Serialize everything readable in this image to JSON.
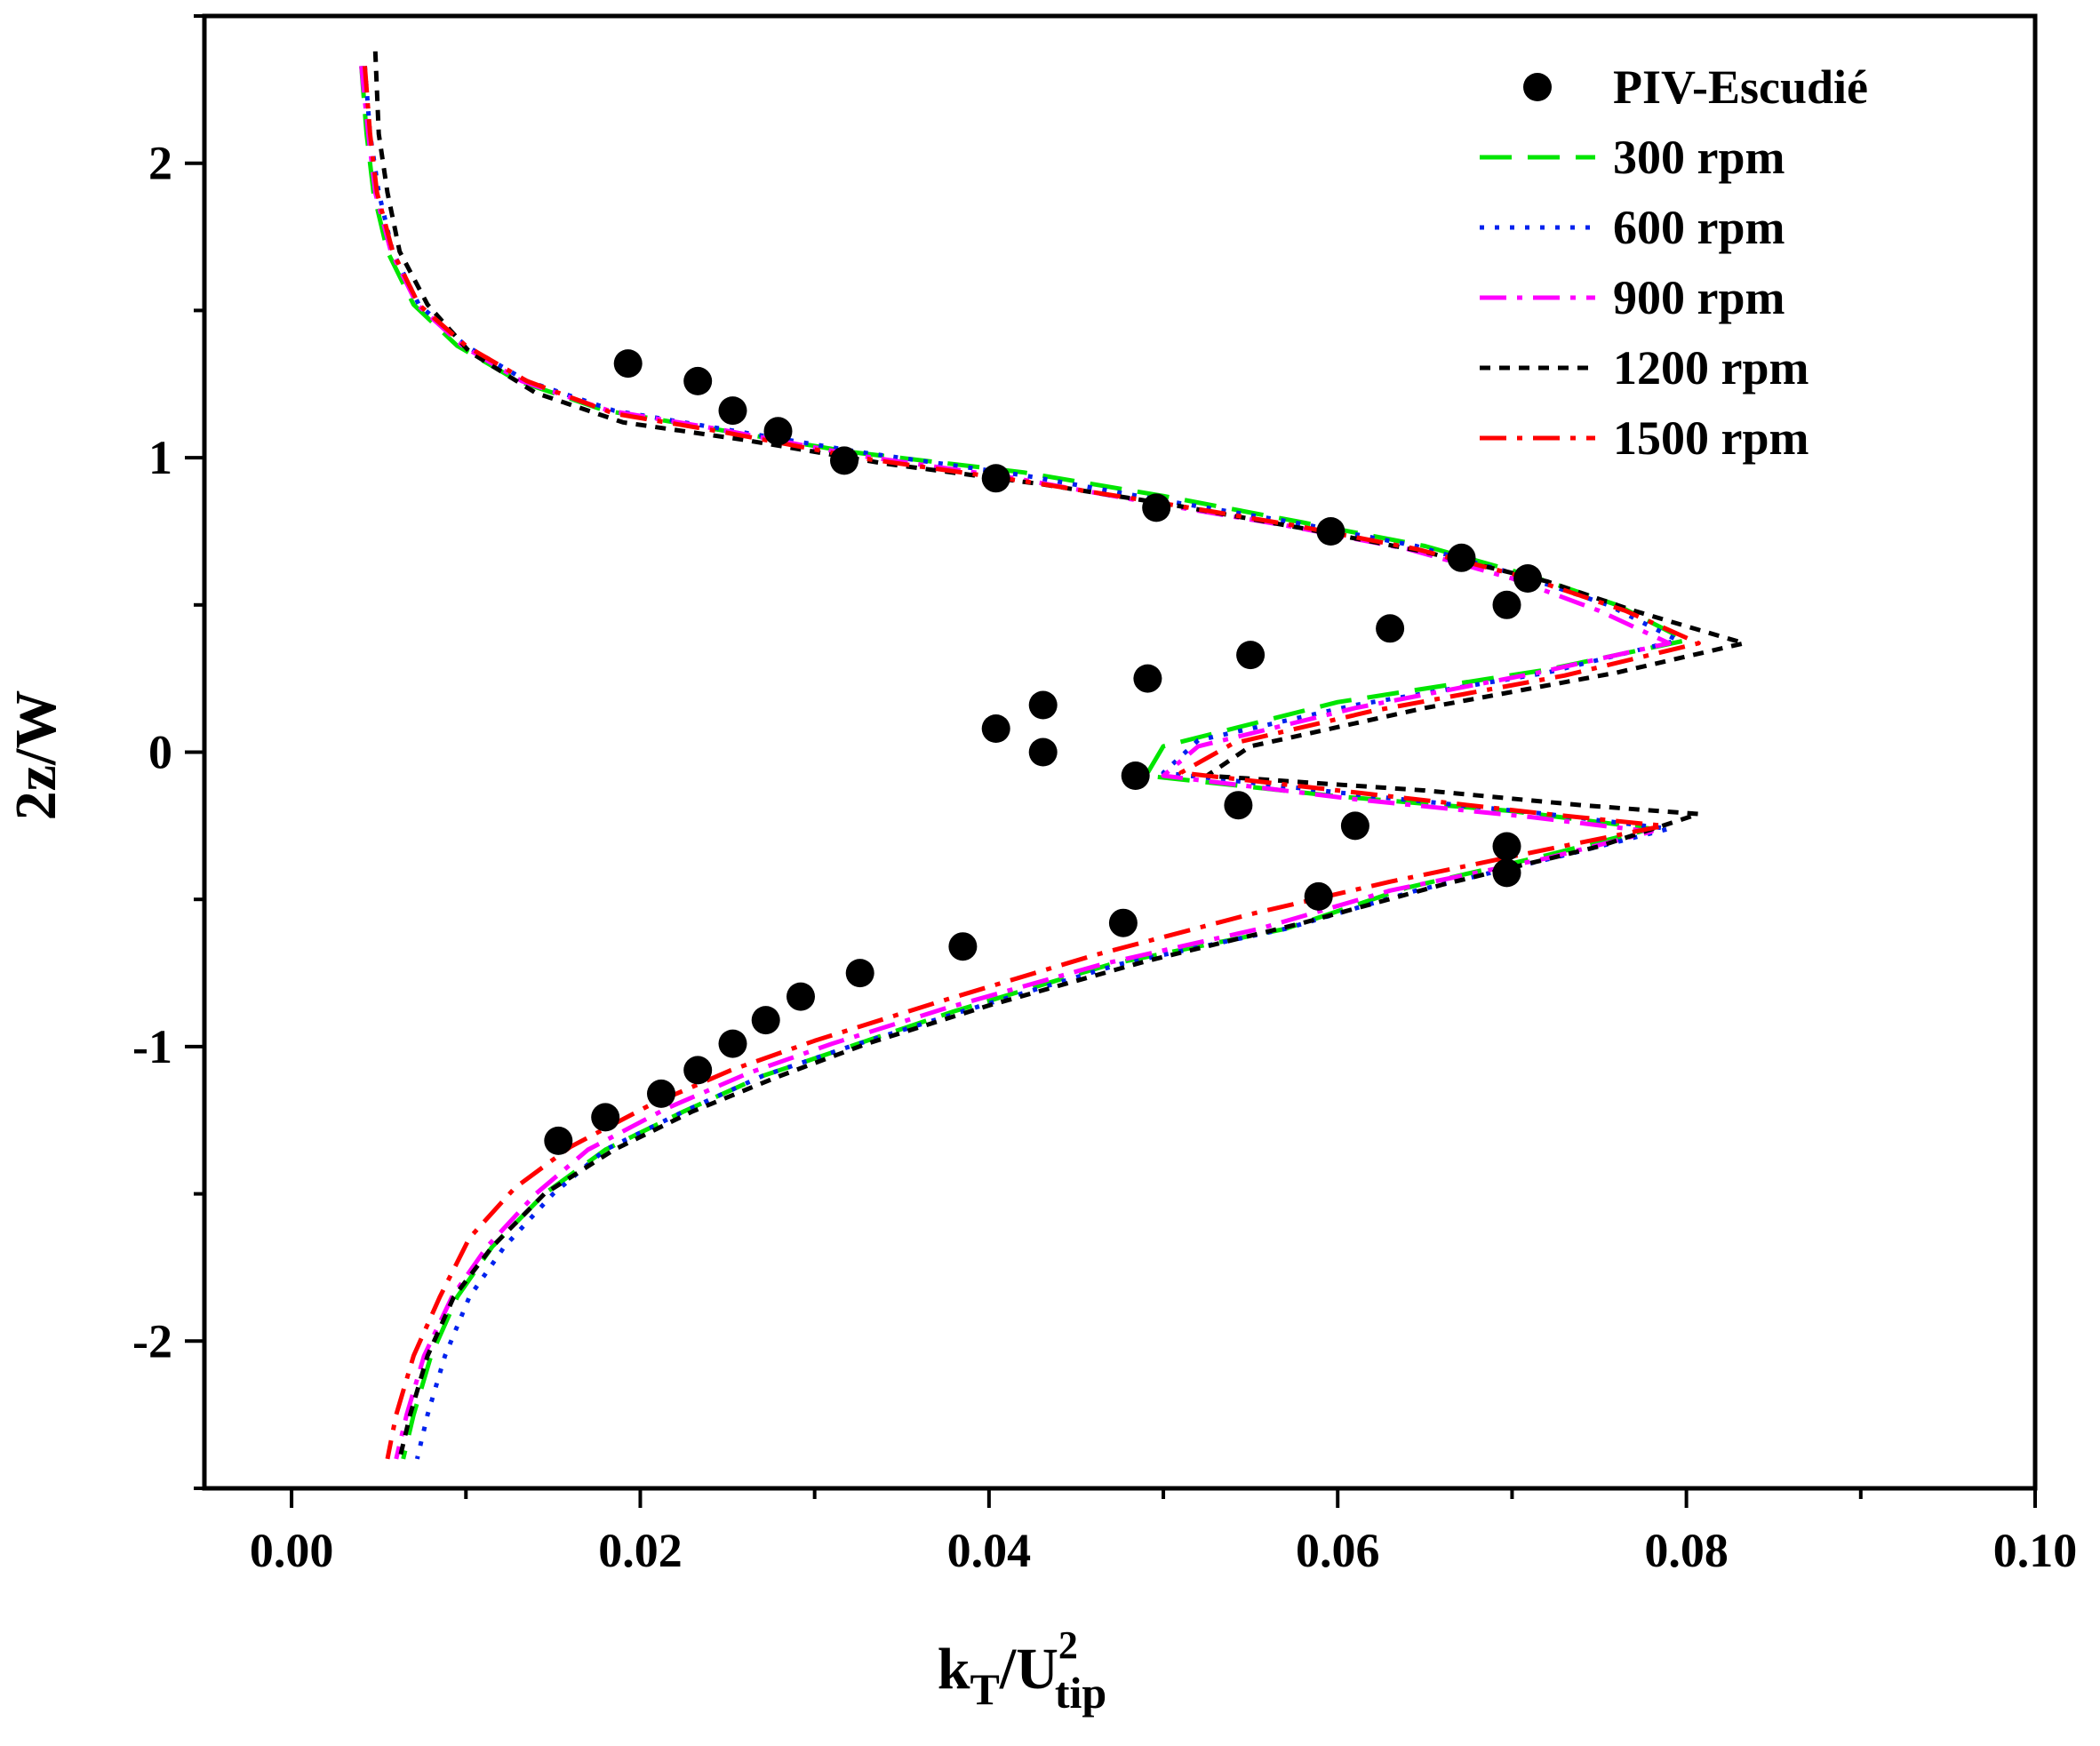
{
  "chart_data": {
    "type": "line",
    "title": "",
    "xlabel": "k_T/U_tip^2",
    "xlabel_parts": {
      "main": "k",
      "sub1": "T",
      "mid": "/U",
      "sup": "2",
      "sub2": "tip"
    },
    "ylabel": "2z/W",
    "xlim": [
      -0.005,
      0.1
    ],
    "ylim": [
      -2.5,
      2.5
    ],
    "x_ticks": [
      0.0,
      0.02,
      0.04,
      0.06,
      0.08,
      0.1
    ],
    "x_tick_labels": [
      "0.00",
      "0.02",
      "0.04",
      "0.06",
      "0.08",
      "0.10"
    ],
    "y_ticks": [
      -2,
      -1,
      0,
      1,
      2
    ],
    "y_tick_labels": [
      "-2",
      "-1",
      "0",
      "1",
      "2"
    ],
    "grid": false,
    "legend_position": "top-right",
    "experimental": {
      "name": "PIV-Escudié",
      "color": "#000000",
      "points": [
        [
          0.0193,
          1.32
        ],
        [
          0.0233,
          1.26
        ],
        [
          0.0253,
          1.16
        ],
        [
          0.0279,
          1.09
        ],
        [
          0.0317,
          0.99
        ],
        [
          0.0404,
          0.93
        ],
        [
          0.0496,
          0.83
        ],
        [
          0.0596,
          0.75
        ],
        [
          0.0671,
          0.66
        ],
        [
          0.0709,
          0.59
        ],
        [
          0.0697,
          0.5
        ],
        [
          0.063,
          0.42
        ],
        [
          0.055,
          0.33
        ],
        [
          0.0491,
          0.25
        ],
        [
          0.0431,
          0.16
        ],
        [
          0.0404,
          0.08
        ],
        [
          0.0431,
          0.0
        ],
        [
          0.0484,
          -0.08
        ],
        [
          0.0543,
          -0.18
        ],
        [
          0.061,
          -0.25
        ],
        [
          0.0697,
          -0.32
        ],
        [
          0.0697,
          -0.41
        ],
        [
          0.0589,
          -0.49
        ],
        [
          0.0477,
          -0.58
        ],
        [
          0.0385,
          -0.66
        ],
        [
          0.0326,
          -0.75
        ],
        [
          0.0292,
          -0.83
        ],
        [
          0.0272,
          -0.91
        ],
        [
          0.0253,
          -0.99
        ],
        [
          0.0233,
          -1.08
        ],
        [
          0.0212,
          -1.16
        ],
        [
          0.018,
          -1.24
        ],
        [
          0.0153,
          -1.32
        ]
      ]
    },
    "series": [
      {
        "name": "300 rpm",
        "color": "#00e600",
        "dash": "long-dash",
        "points": [
          [
            0.004,
            2.33
          ],
          [
            0.0043,
            2.1
          ],
          [
            0.0047,
            1.9
          ],
          [
            0.0055,
            1.7
          ],
          [
            0.007,
            1.52
          ],
          [
            0.0095,
            1.38
          ],
          [
            0.013,
            1.26
          ],
          [
            0.018,
            1.16
          ],
          [
            0.024,
            1.1
          ],
          [
            0.032,
            1.02
          ],
          [
            0.042,
            0.95
          ],
          [
            0.05,
            0.87
          ],
          [
            0.058,
            0.78
          ],
          [
            0.065,
            0.7
          ],
          [
            0.071,
            0.6
          ],
          [
            0.076,
            0.5
          ],
          [
            0.08,
            0.38
          ],
          [
            0.072,
            0.28
          ],
          [
            0.06,
            0.17
          ],
          [
            0.05,
            0.02
          ],
          [
            0.049,
            -0.08
          ],
          [
            0.06,
            -0.15
          ],
          [
            0.07,
            -0.2
          ],
          [
            0.078,
            -0.26
          ],
          [
            0.072,
            -0.35
          ],
          [
            0.064,
            -0.46
          ],
          [
            0.057,
            -0.6
          ],
          [
            0.047,
            -0.72
          ],
          [
            0.038,
            -0.88
          ],
          [
            0.032,
            -1.0
          ],
          [
            0.027,
            -1.1
          ],
          [
            0.0225,
            -1.22
          ],
          [
            0.018,
            -1.35
          ],
          [
            0.0145,
            -1.5
          ],
          [
            0.0115,
            -1.68
          ],
          [
            0.0095,
            -1.85
          ],
          [
            0.008,
            -2.05
          ],
          [
            0.007,
            -2.25
          ],
          [
            0.0064,
            -2.4
          ]
        ]
      },
      {
        "name": "600 rpm",
        "color": "#0022ee",
        "dash": "dot",
        "points": [
          [
            0.0042,
            2.33
          ],
          [
            0.0045,
            2.1
          ],
          [
            0.005,
            1.9
          ],
          [
            0.0058,
            1.7
          ],
          [
            0.0073,
            1.52
          ],
          [
            0.01,
            1.38
          ],
          [
            0.0135,
            1.26
          ],
          [
            0.0185,
            1.16
          ],
          [
            0.0245,
            1.1
          ],
          [
            0.0325,
            1.02
          ],
          [
            0.042,
            0.94
          ],
          [
            0.0495,
            0.86
          ],
          [
            0.0575,
            0.78
          ],
          [
            0.0645,
            0.7
          ],
          [
            0.0705,
            0.6
          ],
          [
            0.0755,
            0.5
          ],
          [
            0.0795,
            0.38
          ],
          [
            0.072,
            0.27
          ],
          [
            0.061,
            0.16
          ],
          [
            0.052,
            0.04
          ],
          [
            0.05,
            -0.07
          ],
          [
            0.062,
            -0.15
          ],
          [
            0.072,
            -0.21
          ],
          [
            0.079,
            -0.26
          ],
          [
            0.073,
            -0.35
          ],
          [
            0.0645,
            -0.47
          ],
          [
            0.057,
            -0.6
          ],
          [
            0.0475,
            -0.72
          ],
          [
            0.0385,
            -0.88
          ],
          [
            0.032,
            -1.0
          ],
          [
            0.027,
            -1.1
          ],
          [
            0.0225,
            -1.22
          ],
          [
            0.018,
            -1.35
          ],
          [
            0.015,
            -1.5
          ],
          [
            0.0122,
            -1.68
          ],
          [
            0.0102,
            -1.85
          ],
          [
            0.0088,
            -2.05
          ],
          [
            0.0078,
            -2.25
          ],
          [
            0.0072,
            -2.4
          ]
        ]
      },
      {
        "name": "900 rpm",
        "color": "#ff00ff",
        "dash": "dash-dot",
        "points": [
          [
            0.004,
            2.33
          ],
          [
            0.0044,
            2.1
          ],
          [
            0.0048,
            1.9
          ],
          [
            0.0057,
            1.7
          ],
          [
            0.0072,
            1.52
          ],
          [
            0.0098,
            1.38
          ],
          [
            0.0132,
            1.26
          ],
          [
            0.0182,
            1.16
          ],
          [
            0.0242,
            1.1
          ],
          [
            0.0322,
            1.01
          ],
          [
            0.0415,
            0.93
          ],
          [
            0.049,
            0.85
          ],
          [
            0.057,
            0.77
          ],
          [
            0.064,
            0.69
          ],
          [
            0.07,
            0.59
          ],
          [
            0.075,
            0.48
          ],
          [
            0.079,
            0.37
          ],
          [
            0.0715,
            0.27
          ],
          [
            0.061,
            0.15
          ],
          [
            0.052,
            0.02
          ],
          [
            0.05,
            -0.08
          ],
          [
            0.061,
            -0.16
          ],
          [
            0.071,
            -0.22
          ],
          [
            0.078,
            -0.27
          ],
          [
            0.072,
            -0.36
          ],
          [
            0.063,
            -0.47
          ],
          [
            0.0555,
            -0.6
          ],
          [
            0.0465,
            -0.72
          ],
          [
            0.0375,
            -0.87
          ],
          [
            0.031,
            -0.99
          ],
          [
            0.0262,
            -1.09
          ],
          [
            0.0215,
            -1.21
          ],
          [
            0.017,
            -1.35
          ],
          [
            0.014,
            -1.5
          ],
          [
            0.0112,
            -1.68
          ],
          [
            0.0092,
            -1.85
          ],
          [
            0.0076,
            -2.05
          ],
          [
            0.0066,
            -2.25
          ],
          [
            0.006,
            -2.4
          ]
        ]
      },
      {
        "name": "1200 rpm",
        "color": "#000000",
        "dash": "short-dash",
        "points": [
          [
            0.0048,
            2.38
          ],
          [
            0.005,
            2.1
          ],
          [
            0.0055,
            1.9
          ],
          [
            0.0062,
            1.7
          ],
          [
            0.0078,
            1.52
          ],
          [
            0.0102,
            1.36
          ],
          [
            0.014,
            1.22
          ],
          [
            0.019,
            1.12
          ],
          [
            0.026,
            1.06
          ],
          [
            0.034,
            0.98
          ],
          [
            0.043,
            0.91
          ],
          [
            0.0505,
            0.84
          ],
          [
            0.058,
            0.76
          ],
          [
            0.065,
            0.68
          ],
          [
            0.072,
            0.58
          ],
          [
            0.077,
            0.48
          ],
          [
            0.0833,
            0.37
          ],
          [
            0.076,
            0.27
          ],
          [
            0.065,
            0.15
          ],
          [
            0.055,
            0.02
          ],
          [
            0.0525,
            -0.08
          ],
          [
            0.065,
            -0.13
          ],
          [
            0.074,
            -0.18
          ],
          [
            0.0807,
            -0.21
          ],
          [
            0.075,
            -0.32
          ],
          [
            0.066,
            -0.45
          ],
          [
            0.058,
            -0.58
          ],
          [
            0.049,
            -0.71
          ],
          [
            0.04,
            -0.86
          ],
          [
            0.033,
            -0.99
          ],
          [
            0.028,
            -1.1
          ],
          [
            0.023,
            -1.22
          ],
          [
            0.0185,
            -1.35
          ],
          [
            0.0145,
            -1.5
          ],
          [
            0.0115,
            -1.68
          ],
          [
            0.0093,
            -1.85
          ],
          [
            0.0078,
            -2.05
          ],
          [
            0.0068,
            -2.25
          ],
          [
            0.0062,
            -2.4
          ]
        ]
      },
      {
        "name": "1500 rpm",
        "color": "#ff0000",
        "dash": "dash-dot",
        "points": [
          [
            0.0042,
            2.33
          ],
          [
            0.0045,
            2.1
          ],
          [
            0.0049,
            1.9
          ],
          [
            0.0058,
            1.7
          ],
          [
            0.0073,
            1.52
          ],
          [
            0.01,
            1.38
          ],
          [
            0.0135,
            1.26
          ],
          [
            0.0185,
            1.15
          ],
          [
            0.0245,
            1.09
          ],
          [
            0.0325,
            1.0
          ],
          [
            0.042,
            0.92
          ],
          [
            0.0495,
            0.85
          ],
          [
            0.0575,
            0.77
          ],
          [
            0.0645,
            0.69
          ],
          [
            0.071,
            0.59
          ],
          [
            0.0765,
            0.48
          ],
          [
            0.0807,
            0.37
          ],
          [
            0.073,
            0.26
          ],
          [
            0.062,
            0.14
          ],
          [
            0.054,
            0.03
          ],
          [
            0.051,
            -0.07
          ],
          [
            0.063,
            -0.15
          ],
          [
            0.072,
            -0.21
          ],
          [
            0.0787,
            -0.25
          ],
          [
            0.072,
            -0.33
          ],
          [
            0.063,
            -0.44
          ],
          [
            0.055,
            -0.55
          ],
          [
            0.046,
            -0.69
          ],
          [
            0.037,
            -0.85
          ],
          [
            0.03,
            -0.98
          ],
          [
            0.0252,
            -1.08
          ],
          [
            0.0205,
            -1.2
          ],
          [
            0.016,
            -1.34
          ],
          [
            0.0128,
            -1.48
          ],
          [
            0.0102,
            -1.65
          ],
          [
            0.0085,
            -1.85
          ],
          [
            0.007,
            -2.05
          ],
          [
            0.006,
            -2.25
          ],
          [
            0.0055,
            -2.4
          ]
        ]
      }
    ]
  }
}
